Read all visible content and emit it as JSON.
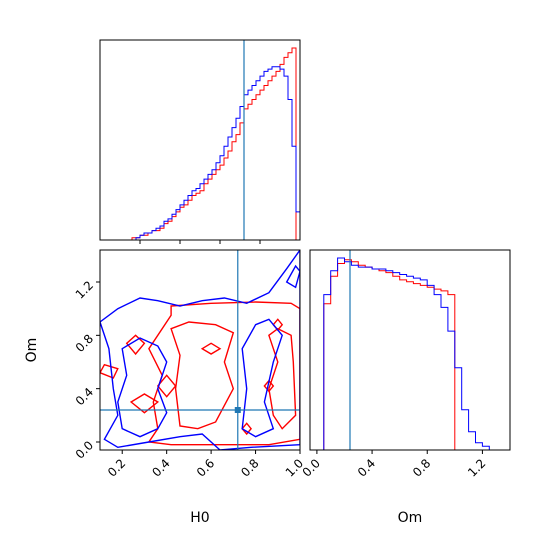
{
  "chart_data": {
    "type": "corner",
    "parameters": [
      "H0",
      "Om"
    ],
    "truths": {
      "H0": 0.72,
      "Om": 0.24
    },
    "colors": {
      "red": "#ff0000",
      "blue": "#0000ff",
      "truth": "#1f77b4"
    },
    "panels": [
      {
        "id": "hist_H0",
        "type": "histogram-step",
        "xlim": [
          0.0,
          1.0
        ],
        "x_ticks": [
          0.2,
          0.4,
          0.6,
          0.8
        ],
        "tick_labels_shown": false,
        "bin_edges": [
          0.1,
          0.12,
          0.14,
          0.16,
          0.18,
          0.2,
          0.22,
          0.24,
          0.26,
          0.28,
          0.3,
          0.32,
          0.34,
          0.36,
          0.38,
          0.4,
          0.42,
          0.44,
          0.46,
          0.48,
          0.5,
          0.52,
          0.54,
          0.56,
          0.58,
          0.6,
          0.62,
          0.64,
          0.66,
          0.68,
          0.7,
          0.72,
          0.74,
          0.76,
          0.78,
          0.8,
          0.82,
          0.84,
          0.86,
          0.88,
          0.9,
          0.92,
          0.94,
          0.96,
          0.98,
          1.0
        ],
        "series": [
          {
            "color": "red",
            "counts": [
              0,
              0,
              0,
              1,
              1,
              2,
              2,
              3,
              4,
              4,
              5,
              7,
              8,
              10,
              12,
              14,
              15,
              17,
              19,
              20,
              21,
              24,
              26,
              28,
              30,
              32,
              35,
              38,
              42,
              45,
              50,
              56,
              58,
              60,
              62,
              64,
              66,
              68,
              70,
              72,
              75,
              78,
              80,
              82,
              0
            ]
          },
          {
            "color": "blue",
            "counts": [
              0,
              0,
              0,
              0,
              1,
              2,
              3,
              3,
              4,
              5,
              6,
              8,
              9,
              11,
              13,
              15,
              17,
              19,
              21,
              22,
              24,
              26,
              28,
              30,
              33,
              36,
              40,
              44,
              48,
              52,
              57,
              62,
              64,
              66,
              68,
              70,
              72,
              73,
              74,
              74,
              73,
              70,
              60,
              40,
              12
            ]
          }
        ]
      },
      {
        "id": "hist_Om",
        "type": "histogram-step",
        "xlim": [
          -0.05,
          1.4
        ],
        "x_ticks": [
          0.0,
          0.4,
          0.8,
          1.2
        ],
        "x_tick_labels": [
          "0.0",
          "0.4",
          "0.8",
          "1.2"
        ],
        "xlabel": "Om",
        "bin_edges": [
          0.0,
          0.05,
          0.1,
          0.15,
          0.2,
          0.25,
          0.3,
          0.35,
          0.4,
          0.45,
          0.5,
          0.55,
          0.6,
          0.65,
          0.7,
          0.75,
          0.8,
          0.85,
          0.9,
          0.95,
          1.0,
          1.05,
          1.1,
          1.15,
          1.2,
          1.25,
          1.3
        ],
        "series": [
          {
            "color": "red",
            "counts": [
              0,
              80,
              95,
              102,
              104,
              103,
              101,
              100,
              99,
              98,
              97,
              95,
              93,
              92,
              91,
              90,
              89,
              88,
              87,
              85,
              0,
              0,
              0,
              0,
              0,
              0
            ]
          },
          {
            "color": "blue",
            "counts": [
              0,
              85,
              98,
              105,
              103,
              101,
              100,
              100,
              99,
              99,
              98,
              97,
              96,
              95,
              94,
              93,
              90,
              85,
              78,
              65,
              45,
              22,
              10,
              4,
              2,
              0
            ]
          }
        ]
      },
      {
        "id": "contour_H0_Om",
        "type": "contour",
        "xlim": [
          0.1,
          1.0
        ],
        "ylim": [
          -0.06,
          1.44
        ],
        "x_ticks": [
          0.2,
          0.4,
          0.6,
          0.8,
          1.0
        ],
        "x_tick_labels": [
          "0.2",
          "0.4",
          "0.6",
          "0.8",
          "1.0"
        ],
        "y_ticks": [
          0.0,
          0.4,
          0.8,
          1.2
        ],
        "y_tick_labels": [
          "0.0",
          "0.4",
          "0.8",
          "1.2"
        ],
        "xlabel": "H0",
        "ylabel": "Om",
        "series": [
          {
            "color": "red",
            "paths": [
              [
                [
                  0.42,
                  1.02
                ],
                [
                  0.6,
                  1.04
                ],
                [
                  0.8,
                  1.05
                ],
                [
                  0.96,
                  1.04
                ],
                [
                  1.0,
                  1.0
                ],
                [
                  1.0,
                  0.02
                ],
                [
                  0.86,
                  -0.02
                ],
                [
                  0.64,
                  -0.02
                ],
                [
                  0.42,
                  -0.02
                ],
                [
                  0.32,
                  0.0
                ],
                [
                  0.36,
                  0.1
                ],
                [
                  0.34,
                  0.3
                ],
                [
                  0.38,
                  0.5
                ],
                [
                  0.32,
                  0.7
                ],
                [
                  0.42,
                  0.95
                ],
                [
                  0.42,
                  1.02
                ]
              ],
              [
                [
                  0.86,
                  0.8
                ],
                [
                  0.9,
                  0.6
                ],
                [
                  0.86,
                  0.4
                ],
                [
                  0.88,
                  0.2
                ],
                [
                  0.92,
                  0.1
                ],
                [
                  0.98,
                  0.2
                ],
                [
                  0.97,
                  0.6
                ],
                [
                  0.96,
                  0.8
                ],
                [
                  0.9,
                  0.85
                ],
                [
                  0.86,
                  0.8
                ]
              ],
              [
                [
                  0.42,
                  0.85
                ],
                [
                  0.5,
                  0.9
                ],
                [
                  0.62,
                  0.88
                ],
                [
                  0.7,
                  0.82
                ],
                [
                  0.66,
                  0.6
                ],
                [
                  0.7,
                  0.4
                ],
                [
                  0.62,
                  0.15
                ],
                [
                  0.54,
                  0.1
                ],
                [
                  0.46,
                  0.12
                ],
                [
                  0.44,
                  0.4
                ],
                [
                  0.46,
                  0.65
                ],
                [
                  0.42,
                  0.85
                ]
              ],
              [
                [
                  0.1,
                  0.52
                ],
                [
                  0.16,
                  0.48
                ],
                [
                  0.18,
                  0.55
                ],
                [
                  0.12,
                  0.58
                ],
                [
                  0.1,
                  0.52
                ]
              ],
              [
                [
                  0.22,
                  0.74
                ],
                [
                  0.26,
                  0.8
                ],
                [
                  0.3,
                  0.74
                ],
                [
                  0.26,
                  0.66
                ],
                [
                  0.22,
                  0.74
                ]
              ],
              [
                [
                  0.36,
                  0.42
                ],
                [
                  0.4,
                  0.5
                ],
                [
                  0.44,
                  0.42
                ],
                [
                  0.4,
                  0.34
                ],
                [
                  0.36,
                  0.42
                ]
              ],
              [
                [
                  0.74,
                  0.1
                ],
                [
                  0.76,
                  0.14
                ],
                [
                  0.78,
                  0.1
                ],
                [
                  0.76,
                  0.06
                ],
                [
                  0.74,
                  0.1
                ]
              ],
              [
                [
                  0.84,
                  0.42
                ],
                [
                  0.86,
                  0.46
                ],
                [
                  0.88,
                  0.42
                ],
                [
                  0.86,
                  0.38
                ],
                [
                  0.84,
                  0.42
                ]
              ],
              [
                [
                  0.88,
                  0.88
                ],
                [
                  0.9,
                  0.92
                ],
                [
                  0.92,
                  0.88
                ],
                [
                  0.9,
                  0.84
                ],
                [
                  0.88,
                  0.88
                ]
              ],
              [
                [
                  0.24,
                  0.3
                ],
                [
                  0.3,
                  0.36
                ],
                [
                  0.36,
                  0.3
                ],
                [
                  0.3,
                  0.22
                ],
                [
                  0.24,
                  0.3
                ]
              ],
              [
                [
                  0.56,
                  0.7
                ],
                [
                  0.6,
                  0.74
                ],
                [
                  0.64,
                  0.7
                ],
                [
                  0.6,
                  0.66
                ],
                [
                  0.56,
                  0.7
                ]
              ]
            ]
          },
          {
            "color": "blue",
            "paths": [
              [
                [
                  0.1,
                  0.9
                ],
                [
                  0.18,
                  1.0
                ],
                [
                  0.28,
                  1.08
                ],
                [
                  0.36,
                  1.06
                ],
                [
                  0.46,
                  1.02
                ],
                [
                  0.56,
                  1.06
                ],
                [
                  0.66,
                  1.08
                ],
                [
                  0.76,
                  1.04
                ],
                [
                  0.86,
                  1.12
                ],
                [
                  0.94,
                  1.3
                ],
                [
                  1.0,
                  1.44
                ],
                [
                  1.0,
                  -0.02
                ],
                [
                  0.78,
                  -0.04
                ],
                [
                  0.64,
                  -0.06
                ],
                [
                  0.56,
                  0.06
                ],
                [
                  0.46,
                  0.04
                ],
                [
                  0.32,
                  0.0
                ],
                [
                  0.18,
                  -0.04
                ],
                [
                  0.12,
                  0.02
                ],
                [
                  0.18,
                  0.2
                ],
                [
                  0.16,
                  0.4
                ],
                [
                  0.14,
                  0.7
                ],
                [
                  0.1,
                  0.9
                ]
              ],
              [
                [
                  0.2,
                  0.7
                ],
                [
                  0.28,
                  0.78
                ],
                [
                  0.36,
                  0.72
                ],
                [
                  0.4,
                  0.6
                ],
                [
                  0.36,
                  0.4
                ],
                [
                  0.4,
                  0.22
                ],
                [
                  0.36,
                  0.1
                ],
                [
                  0.28,
                  0.04
                ],
                [
                  0.2,
                  0.1
                ],
                [
                  0.18,
                  0.3
                ],
                [
                  0.22,
                  0.5
                ],
                [
                  0.2,
                  0.7
                ]
              ],
              [
                [
                  0.8,
                  0.88
                ],
                [
                  0.86,
                  0.92
                ],
                [
                  0.92,
                  0.8
                ],
                [
                  0.88,
                  0.6
                ],
                [
                  0.84,
                  0.3
                ],
                [
                  0.88,
                  0.1
                ],
                [
                  0.8,
                  0.04
                ],
                [
                  0.74,
                  0.1
                ],
                [
                  0.76,
                  0.4
                ],
                [
                  0.74,
                  0.7
                ],
                [
                  0.8,
                  0.88
                ]
              ],
              [
                [
                  0.94,
                  1.2
                ],
                [
                  0.98,
                  1.32
                ],
                [
                  1.0,
                  1.28
                ],
                [
                  0.98,
                  1.16
                ],
                [
                  0.94,
                  1.2
                ]
              ]
            ]
          }
        ]
      }
    ]
  }
}
